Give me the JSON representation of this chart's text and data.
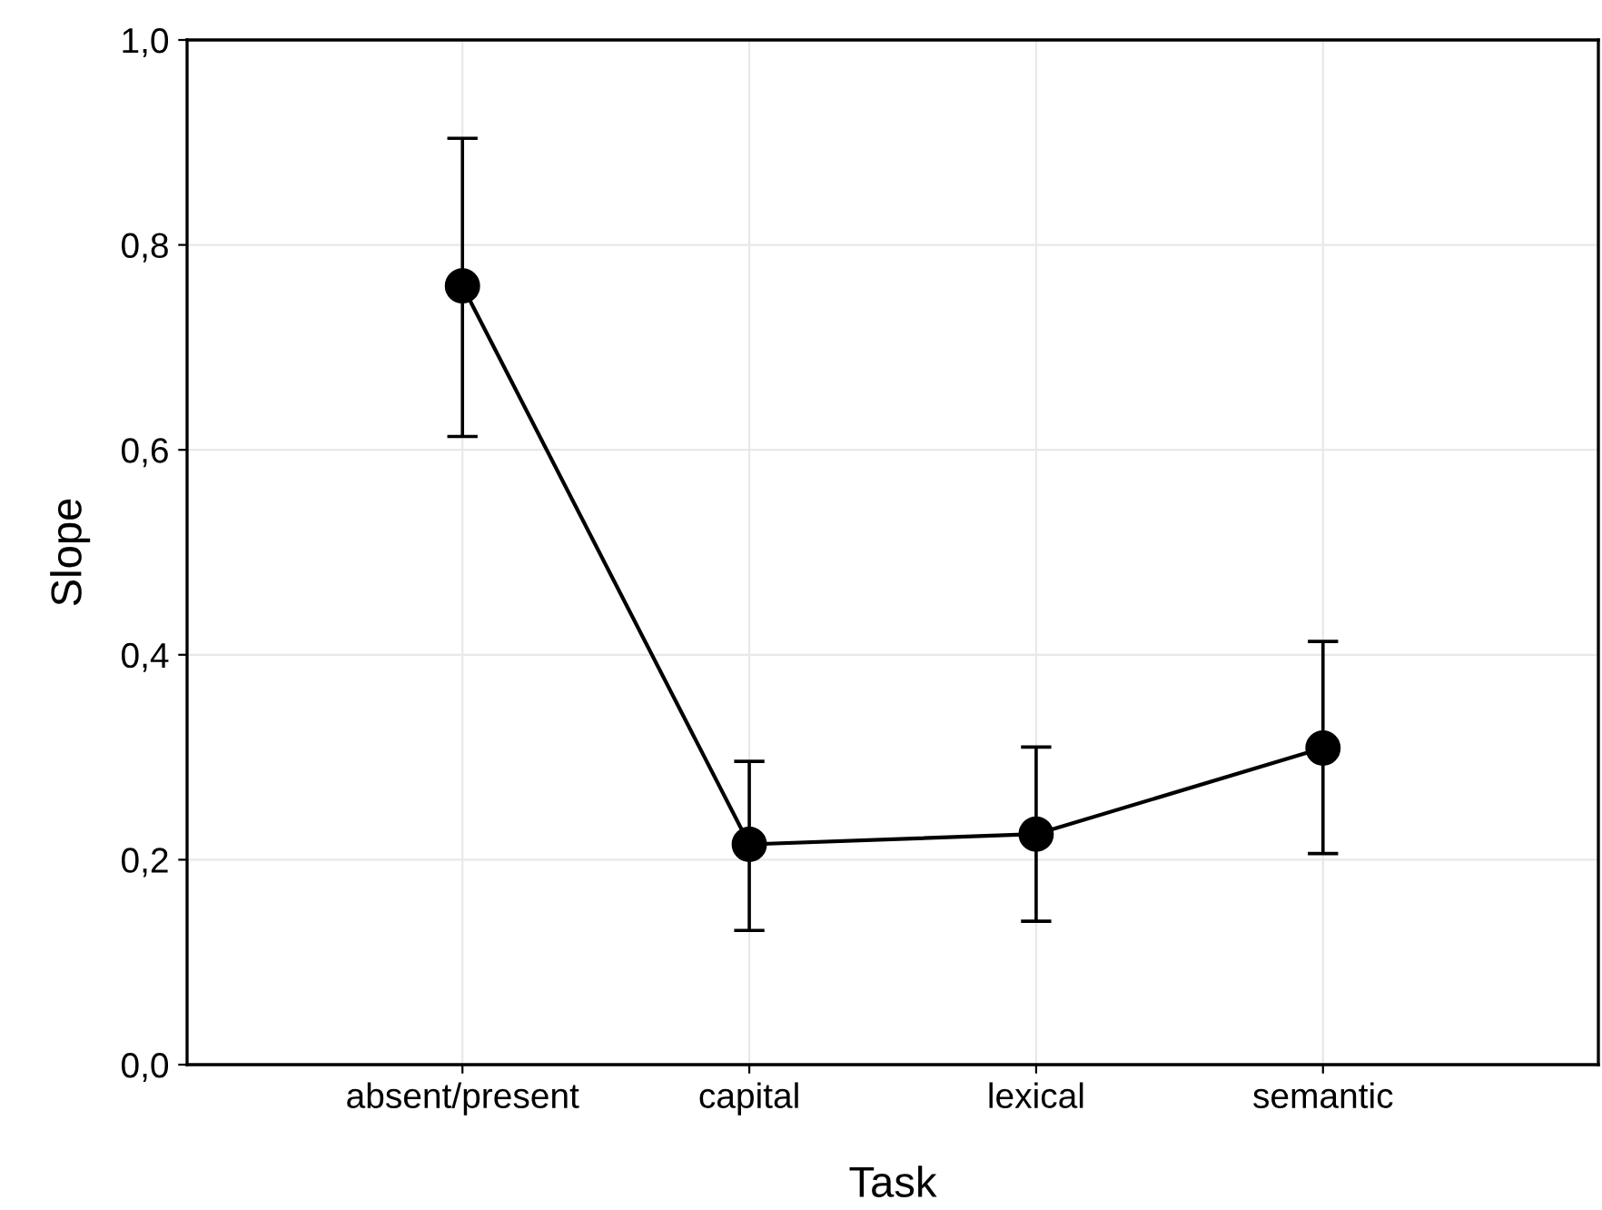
{
  "chart_data": {
    "type": "line",
    "xlabel": "Task",
    "ylabel": "Slope",
    "categories": [
      "absent/present",
      "capital",
      "lexical",
      "semantic"
    ],
    "series": [
      {
        "color": "#000000",
        "values": [
          0.76,
          0.215,
          0.225,
          0.309
        ],
        "errors": [
          [
            0.613,
            0.904
          ],
          [
            0.131,
            0.296
          ],
          [
            0.14,
            0.31
          ],
          [
            0.206,
            0.413
          ]
        ]
      }
    ],
    "ylim": [
      0,
      1
    ],
    "yticks": [
      {
        "value": 0,
        "label": "0,0"
      },
      {
        "value": 0.2,
        "label": "0,2"
      },
      {
        "value": 0.4,
        "label": "0,4"
      },
      {
        "value": 0.6,
        "label": "0,6"
      },
      {
        "value": 0.8,
        "label": "0,8"
      },
      {
        "value": 1,
        "label": "1,0"
      }
    ],
    "grid": true,
    "marker": "circle",
    "line_style": "solid"
  }
}
